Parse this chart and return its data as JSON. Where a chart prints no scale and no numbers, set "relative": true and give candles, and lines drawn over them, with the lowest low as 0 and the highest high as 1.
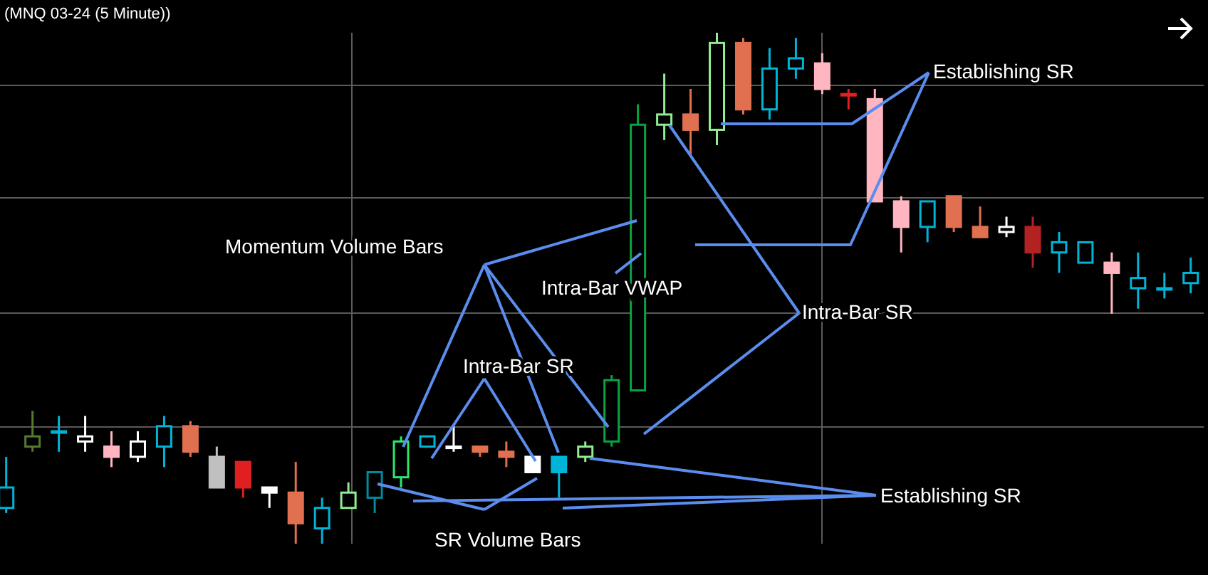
{
  "chart_data": {
    "type": "candlestick",
    "title": "(MNQ 03-24 (5 Minute))",
    "relative": true,
    "grid": true,
    "categories": [
      null,
      null,
      null,
      null,
      null,
      null,
      null,
      null,
      null,
      null,
      null,
      null,
      null,
      null,
      null,
      null,
      null,
      null,
      null,
      null,
      null,
      null,
      null,
      null,
      null,
      null,
      null,
      null,
      null,
      null,
      null,
      null,
      null,
      null,
      null,
      null,
      null,
      null,
      null,
      null,
      null,
      null,
      null,
      null,
      null,
      null
    ],
    "ohlc": [
      [
        0.07,
        0.17,
        0.06,
        0.11
      ],
      [
        0.19,
        0.26,
        0.18,
        0.21
      ],
      [
        0.22,
        0.25,
        0.18,
        0.22
      ],
      [
        0.2,
        0.25,
        0.18,
        0.21
      ],
      [
        0.19,
        0.22,
        0.15,
        0.17
      ],
      [
        0.17,
        0.22,
        0.16,
        0.2
      ],
      [
        0.19,
        0.25,
        0.15,
        0.23
      ],
      [
        0.23,
        0.24,
        0.17,
        0.18
      ],
      [
        0.17,
        0.19,
        0.11,
        0.11
      ],
      [
        0.16,
        0.16,
        0.09,
        0.11
      ],
      [
        0.11,
        0.11,
        0.07,
        0.1
      ],
      [
        0.1,
        0.16,
        0.0,
        0.04
      ],
      [
        0.03,
        0.09,
        0.0,
        0.07
      ],
      [
        0.07,
        0.12,
        0.07,
        0.1
      ],
      [
        0.09,
        0.14,
        0.06,
        0.14
      ],
      [
        0.13,
        0.21,
        0.11,
        0.2
      ],
      [
        0.19,
        0.21,
        0.19,
        0.21
      ],
      [
        0.19,
        0.23,
        0.18,
        0.19
      ],
      [
        0.19,
        0.19,
        0.17,
        0.18
      ],
      [
        0.18,
        0.2,
        0.15,
        0.17
      ],
      [
        0.17,
        0.17,
        0.14,
        0.14
      ],
      [
        0.17,
        0.17,
        0.09,
        0.14
      ],
      [
        0.17,
        0.2,
        0.16,
        0.19
      ],
      [
        0.2,
        0.33,
        0.19,
        0.32
      ],
      [
        0.3,
        0.86,
        0.3,
        0.82
      ],
      [
        0.82,
        0.92,
        0.79,
        0.84
      ],
      [
        0.84,
        0.89,
        0.76,
        0.81
      ],
      [
        0.81,
        1.0,
        0.78,
        0.98
      ],
      [
        0.98,
        0.99,
        0.84,
        0.85
      ],
      [
        0.85,
        0.97,
        0.83,
        0.93
      ],
      [
        0.93,
        0.99,
        0.91,
        0.95
      ],
      [
        0.94,
        0.96,
        0.88,
        0.89
      ],
      [
        0.88,
        0.89,
        0.85,
        0.88
      ],
      [
        0.87,
        0.89,
        0.67,
        0.67
      ],
      [
        0.67,
        0.68,
        0.57,
        0.62
      ],
      [
        0.62,
        0.67,
        0.59,
        0.67
      ],
      [
        0.68,
        0.68,
        0.61,
        0.62
      ],
      [
        0.62,
        0.66,
        0.6,
        0.6
      ],
      [
        0.61,
        0.64,
        0.6,
        0.62
      ],
      [
        0.62,
        0.64,
        0.54,
        0.57
      ],
      [
        0.57,
        0.61,
        0.53,
        0.59
      ],
      [
        0.55,
        0.59,
        0.55,
        0.59
      ],
      [
        0.55,
        0.57,
        0.45,
        0.53
      ],
      [
        0.5,
        0.57,
        0.46,
        0.52
      ],
      [
        0.5,
        0.53,
        0.48,
        0.5
      ],
      [
        0.51,
        0.56,
        0.49,
        0.53
      ]
    ],
    "colors": [
      "#00b4d8",
      "#557a2e",
      "#00b4d8",
      "#ffffff",
      "#ffb6c1",
      "#ffffff",
      "#00b4d8",
      "#e07050",
      "#c0c0c0",
      "#e02020",
      "#ffffff",
      "#e07050",
      "#00b4d8",
      "#90ee90",
      "#008b9b",
      "#2ee66b",
      "#00b4d8",
      "#ffffff",
      "#e07050",
      "#e07050",
      "#ffffff",
      "#00b4d8",
      "#90ee90",
      "#09a441",
      "#09a441",
      "#90ee90",
      "#e07050",
      "#90ee90",
      "#e07050",
      "#00b4d8",
      "#00b4d8",
      "#ffb6c1",
      "#e02020",
      "#ffb6c1",
      "#ffb6c1",
      "#00b4d8",
      "#e07050",
      "#e07050",
      "#ffffff",
      "#b22222",
      "#00b4d8",
      "#00b4d8",
      "#ffb6c1",
      "#00b4d8",
      "#00b4d8",
      "#00b4d8"
    ],
    "annotations": [
      "Establishing SR",
      "Momentum Volume Bars",
      "Intra-Bar VWAP",
      "Intra-Bar SR",
      "Intra-Bar SR",
      "Establishing SR",
      "SR Volume Bars"
    ]
  }
}
